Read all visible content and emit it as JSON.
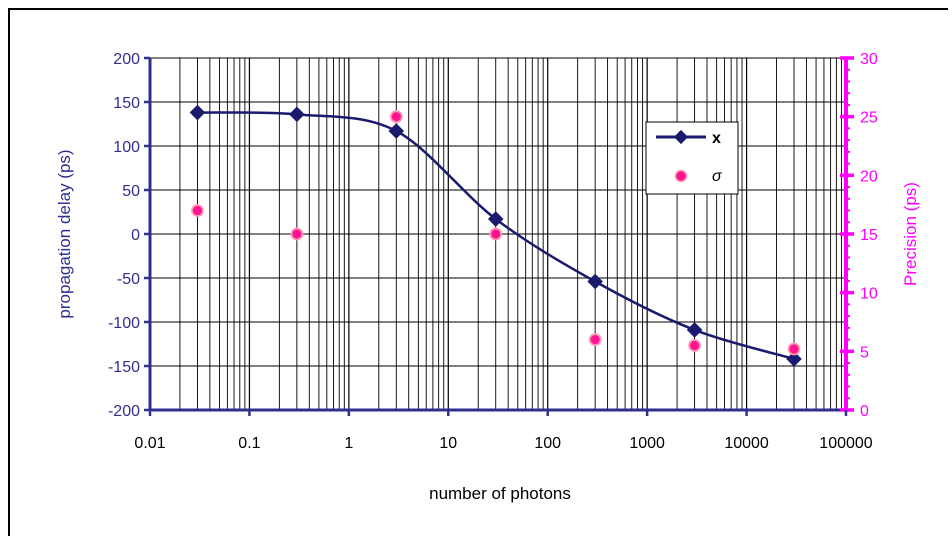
{
  "chart_data": {
    "type": "scatter",
    "title": "",
    "xlabel": "number of photons",
    "ylabel": "propagation delay (ps)",
    "y2label": "Precision (ps)",
    "x_scale": "log",
    "xlim": [
      0.01,
      100000
    ],
    "ylim": [
      -200,
      200
    ],
    "y2lim": [
      0,
      30
    ],
    "grid": true,
    "legend_position": "right",
    "x_tick_labels": [
      "0.01",
      "0.1",
      "1",
      "10",
      "100",
      "1000",
      "10000",
      "100000"
    ],
    "y_tick_labels": [
      "200",
      "150",
      "100",
      "50",
      "0",
      "-50",
      "-100",
      "-150",
      "-200"
    ],
    "y2_tick_labels": [
      "30",
      "25",
      "20",
      "15",
      "10",
      "5",
      "0"
    ],
    "series": [
      {
        "name": "x",
        "axis": "left",
        "style": "line-diamond",
        "color": "#1a1a6e",
        "x": [
          0.03,
          0.3,
          3,
          30,
          300,
          3000,
          30000
        ],
        "y": [
          138,
          136,
          117,
          17,
          -54,
          -109,
          -142
        ]
      },
      {
        "name": "σ",
        "axis": "right",
        "style": "circle",
        "color": "#ff1493",
        "x": [
          0.03,
          0.3,
          3,
          30,
          300,
          3000,
          30000
        ],
        "y": [
          17,
          15,
          25,
          15,
          6,
          5.5,
          5.2
        ]
      }
    ]
  },
  "colors": {
    "left_axis": "#2f2f8f",
    "right_axis": "#ff00ff",
    "grid": "#000000"
  }
}
